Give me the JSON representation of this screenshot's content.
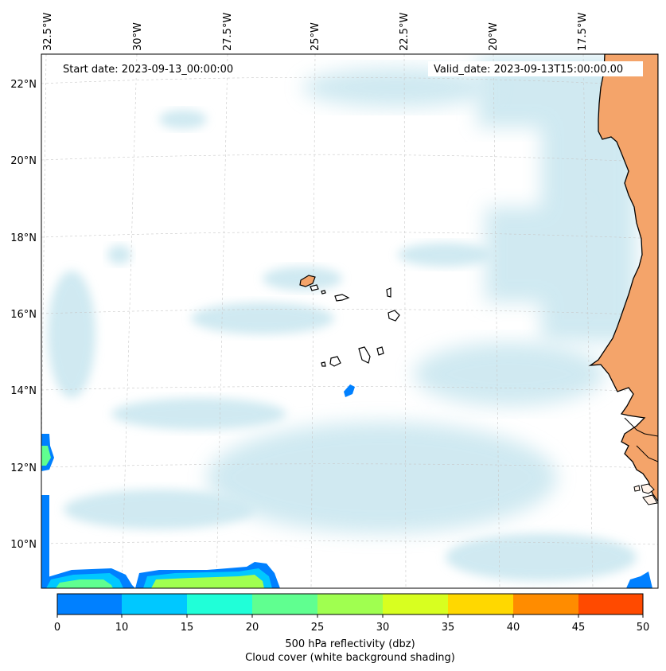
{
  "map": {
    "start_date_label": "Start date: 2023-09-13_00:00:00",
    "valid_date_label": "Valid_date: 2023-09-13T15:00:00.00",
    "longitude_labels": [
      "32.5°W",
      "30°W",
      "27.5°W",
      "25°W",
      "22.5°W",
      "20°W",
      "17.5°W"
    ],
    "latitude_labels": [
      "22°N",
      "20°N",
      "18°N",
      "16°N",
      "14°N",
      "12°N",
      "10°N"
    ],
    "land_color": "#f4a46a",
    "cloud_color": "#a9d8e6"
  },
  "colorbar": {
    "ticks": [
      "0",
      "10",
      "15",
      "20",
      "25",
      "30",
      "35",
      "40",
      "45",
      "50"
    ],
    "colors": [
      "#0080ff",
      "#00c8ff",
      "#20ffd8",
      "#60ff90",
      "#a0ff50",
      "#d8ff20",
      "#ffd800",
      "#ff8c00",
      "#ff4a00"
    ],
    "label_line1": "500 hPa reflectivity (dbz)",
    "label_line2": "Cloud cover (white background shading)"
  }
}
